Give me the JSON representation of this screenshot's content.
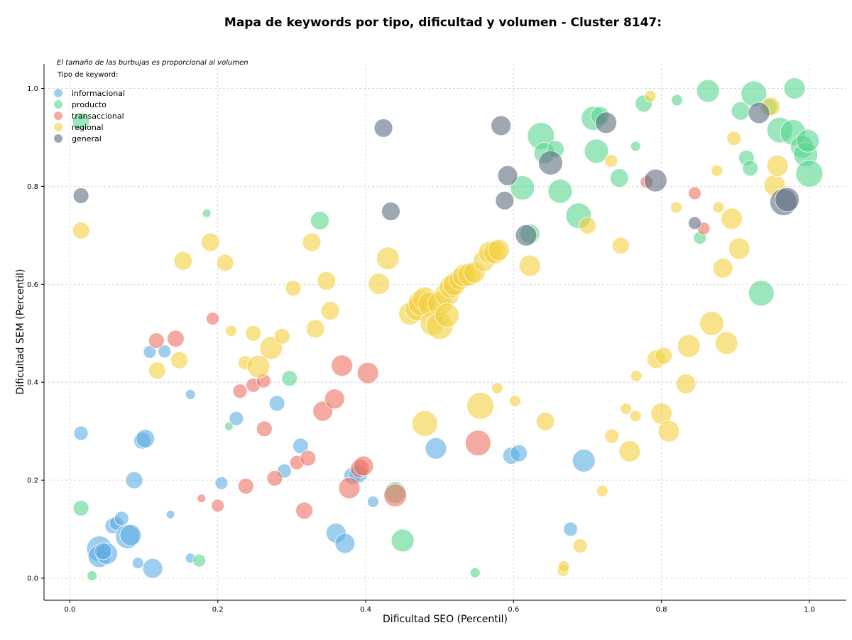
{
  "chart_data": {
    "type": "scatter",
    "title": "Mapa de keywords por tipo, dificultad y volumen - Cluster 8147:",
    "xlabel": "Dificultad SEO (Percentil)",
    "ylabel": "Dificultad SEM (Percentil)",
    "xlim": [
      -0.035,
      1.05
    ],
    "ylim": [
      -0.045,
      1.05
    ],
    "xticks": [
      "0.0",
      "0.2",
      "0.4",
      "0.6",
      "0.8",
      "1.0"
    ],
    "yticks": [
      "0.0",
      "0.2",
      "0.4",
      "0.6",
      "0.8",
      "1.0"
    ],
    "grid": true,
    "legend_title": "Tipo de keyword:",
    "legend_position": "top-left",
    "note": "El tamaño de las burbujas es proporcional al volumen",
    "series": [
      {
        "name": "informacional",
        "color": "#5dade2",
        "points": [
          [
            0.015,
            0.296,
            10
          ],
          [
            0.04,
            0.06,
            18
          ],
          [
            0.04,
            0.045,
            16
          ],
          [
            0.05,
            0.05,
            15
          ],
          [
            0.045,
            0.055,
            12
          ],
          [
            0.058,
            0.107,
            11
          ],
          [
            0.063,
            0.112,
            10
          ],
          [
            0.07,
            0.122,
            10
          ],
          [
            0.078,
            0.085,
            17
          ],
          [
            0.082,
            0.088,
            15
          ],
          [
            0.087,
            0.2,
            12
          ],
          [
            0.092,
            0.031,
            8
          ],
          [
            0.098,
            0.281,
            12
          ],
          [
            0.102,
            0.285,
            13
          ],
          [
            0.108,
            0.462,
            9
          ],
          [
            0.112,
            0.02,
            14
          ],
          [
            0.128,
            0.463,
            9
          ],
          [
            0.136,
            0.13,
            6
          ],
          [
            0.163,
            0.375,
            7
          ],
          [
            0.163,
            0.041,
            7
          ],
          [
            0.205,
            0.194,
            9
          ],
          [
            0.225,
            0.326,
            10
          ],
          [
            0.28,
            0.357,
            11
          ],
          [
            0.29,
            0.219,
            10
          ],
          [
            0.312,
            0.27,
            11
          ],
          [
            0.36,
            0.092,
            14
          ],
          [
            0.372,
            0.071,
            14
          ],
          [
            0.382,
            0.209,
            12
          ],
          [
            0.39,
            0.213,
            13
          ],
          [
            0.41,
            0.156,
            8
          ],
          [
            0.495,
            0.265,
            15
          ],
          [
            0.597,
            0.25,
            12
          ],
          [
            0.607,
            0.255,
            12
          ],
          [
            0.677,
            0.1,
            10
          ],
          [
            0.695,
            0.24,
            16
          ]
        ]
      },
      {
        "name": "producto",
        "color": "#58d68d",
        "points": [
          [
            0.015,
            0.933,
            12
          ],
          [
            0.015,
            0.143,
            11
          ],
          [
            0.03,
            0.005,
            7
          ],
          [
            0.175,
            0.036,
            9
          ],
          [
            0.185,
            0.745,
            6
          ],
          [
            0.215,
            0.31,
            6
          ],
          [
            0.297,
            0.408,
            11
          ],
          [
            0.338,
            0.73,
            13
          ],
          [
            0.44,
            0.175,
            15
          ],
          [
            0.45,
            0.077,
            16
          ],
          [
            0.548,
            0.011,
            7
          ],
          [
            0.612,
            0.797,
            17
          ],
          [
            0.622,
            0.703,
            14
          ],
          [
            0.637,
            0.903,
            19
          ],
          [
            0.642,
            0.868,
            15
          ],
          [
            0.657,
            0.876,
            12
          ],
          [
            0.663,
            0.79,
            17
          ],
          [
            0.688,
            0.74,
            18
          ],
          [
            0.708,
            0.939,
            17
          ],
          [
            0.712,
            0.872,
            17
          ],
          [
            0.717,
            0.944,
            13
          ],
          [
            0.743,
            0.817,
            13
          ],
          [
            0.765,
            0.882,
            7
          ],
          [
            0.776,
            0.969,
            12
          ],
          [
            0.821,
            0.976,
            8
          ],
          [
            0.852,
            0.695,
            9
          ],
          [
            0.863,
            0.995,
            16
          ],
          [
            0.907,
            0.954,
            13
          ],
          [
            0.915,
            0.858,
            11
          ],
          [
            0.92,
            0.837,
            11
          ],
          [
            0.925,
            0.989,
            18
          ],
          [
            0.935,
            0.582,
            18
          ],
          [
            0.945,
            0.962,
            12
          ],
          [
            0.96,
            0.915,
            18
          ],
          [
            0.978,
            0.91,
            18
          ],
          [
            0.98,
            1.0,
            15
          ],
          [
            0.99,
            0.881,
            16
          ],
          [
            0.995,
            0.865,
            17
          ],
          [
            0.998,
            0.893,
            16
          ],
          [
            1.0,
            0.826,
            19
          ]
        ]
      },
      {
        "name": "transaccional",
        "color": "#ec7063",
        "points": [
          [
            0.117,
            0.485,
            11
          ],
          [
            0.143,
            0.489,
            12
          ],
          [
            0.178,
            0.163,
            6
          ],
          [
            0.193,
            0.53,
            9
          ],
          [
            0.2,
            0.148,
            9
          ],
          [
            0.23,
            0.382,
            10
          ],
          [
            0.238,
            0.188,
            11
          ],
          [
            0.248,
            0.394,
            10
          ],
          [
            0.262,
            0.403,
            10
          ],
          [
            0.263,
            0.305,
            11
          ],
          [
            0.277,
            0.204,
            11
          ],
          [
            0.307,
            0.236,
            10
          ],
          [
            0.317,
            0.138,
            12
          ],
          [
            0.322,
            0.245,
            11
          ],
          [
            0.342,
            0.341,
            14
          ],
          [
            0.358,
            0.366,
            14
          ],
          [
            0.368,
            0.434,
            15
          ],
          [
            0.378,
            0.184,
            15
          ],
          [
            0.392,
            0.224,
            13
          ],
          [
            0.397,
            0.229,
            14
          ],
          [
            0.403,
            0.419,
            15
          ],
          [
            0.44,
            0.169,
            16
          ],
          [
            0.552,
            0.276,
            18
          ],
          [
            0.78,
            0.809,
            9
          ],
          [
            0.845,
            0.786,
            9
          ],
          [
            0.857,
            0.714,
            9
          ]
        ]
      },
      {
        "name": "regional",
        "color": "#f4d03f",
        "points": [
          [
            0.015,
            0.71,
            12
          ],
          [
            0.153,
            0.648,
            13
          ],
          [
            0.118,
            0.424,
            12
          ],
          [
            0.148,
            0.445,
            12
          ],
          [
            0.19,
            0.686,
            13
          ],
          [
            0.21,
            0.644,
            12
          ],
          [
            0.218,
            0.505,
            8
          ],
          [
            0.237,
            0.44,
            10
          ],
          [
            0.248,
            0.5,
            11
          ],
          [
            0.255,
            0.432,
            16
          ],
          [
            0.272,
            0.47,
            16
          ],
          [
            0.287,
            0.494,
            11
          ],
          [
            0.302,
            0.592,
            11
          ],
          [
            0.327,
            0.686,
            13
          ],
          [
            0.332,
            0.509,
            13
          ],
          [
            0.347,
            0.607,
            13
          ],
          [
            0.352,
            0.546,
            13
          ],
          [
            0.418,
            0.601,
            15
          ],
          [
            0.43,
            0.653,
            16
          ],
          [
            0.46,
            0.54,
            16
          ],
          [
            0.47,
            0.55,
            17
          ],
          [
            0.475,
            0.562,
            18
          ],
          [
            0.48,
            0.57,
            17
          ],
          [
            0.48,
            0.316,
            18
          ],
          [
            0.487,
            0.56,
            17
          ],
          [
            0.49,
            0.52,
            17
          ],
          [
            0.5,
            0.515,
            19
          ],
          [
            0.5,
            0.56,
            17
          ],
          [
            0.51,
            0.58,
            17
          ],
          [
            0.515,
            0.595,
            16
          ],
          [
            0.52,
            0.6,
            16
          ],
          [
            0.51,
            0.537,
            17
          ],
          [
            0.527,
            0.61,
            15
          ],
          [
            0.533,
            0.618,
            16
          ],
          [
            0.54,
            0.62,
            16
          ],
          [
            0.547,
            0.624,
            15
          ],
          [
            0.56,
            0.648,
            15
          ],
          [
            0.568,
            0.665,
            16
          ],
          [
            0.575,
            0.665,
            16
          ],
          [
            0.58,
            0.67,
            15
          ],
          [
            0.555,
            0.352,
            19
          ],
          [
            0.578,
            0.388,
            8
          ],
          [
            0.602,
            0.362,
            8
          ],
          [
            0.622,
            0.638,
            15
          ],
          [
            0.643,
            0.32,
            13
          ],
          [
            0.667,
            0.015,
            8
          ],
          [
            0.668,
            0.024,
            8
          ],
          [
            0.69,
            0.066,
            10
          ],
          [
            0.7,
            0.72,
            12
          ],
          [
            0.72,
            0.178,
            8
          ],
          [
            0.732,
            0.852,
            9
          ],
          [
            0.733,
            0.29,
            10
          ],
          [
            0.745,
            0.679,
            12
          ],
          [
            0.752,
            0.346,
            8
          ],
          [
            0.757,
            0.259,
            15
          ],
          [
            0.765,
            0.331,
            8
          ],
          [
            0.766,
            0.413,
            8
          ],
          [
            0.785,
            0.984,
            8
          ],
          [
            0.793,
            0.447,
            13
          ],
          [
            0.8,
            0.336,
            15
          ],
          [
            0.803,
            0.454,
            12
          ],
          [
            0.81,
            0.3,
            15
          ],
          [
            0.82,
            0.757,
            8
          ],
          [
            0.837,
            0.474,
            16
          ],
          [
            0.833,
            0.397,
            14
          ],
          [
            0.868,
            0.52,
            17
          ],
          [
            0.875,
            0.832,
            8
          ],
          [
            0.877,
            0.757,
            8
          ],
          [
            0.883,
            0.633,
            14
          ],
          [
            0.888,
            0.48,
            16
          ],
          [
            0.895,
            0.734,
            15
          ],
          [
            0.898,
            0.898,
            10
          ],
          [
            0.905,
            0.673,
            15
          ],
          [
            0.948,
            0.963,
            13
          ],
          [
            0.953,
            0.802,
            15
          ],
          [
            0.957,
            0.842,
            15
          ]
        ]
      },
      {
        "name": "general",
        "color": "#5d6d7e",
        "points": [
          [
            0.015,
            0.781,
            11
          ],
          [
            0.424,
            0.919,
            13
          ],
          [
            0.434,
            0.749,
            13
          ],
          [
            0.583,
            0.924,
            14
          ],
          [
            0.588,
            0.771,
            13
          ],
          [
            0.592,
            0.822,
            14
          ],
          [
            0.617,
            0.7,
            15
          ],
          [
            0.65,
            0.848,
            17
          ],
          [
            0.725,
            0.93,
            15
          ],
          [
            0.792,
            0.812,
            16
          ],
          [
            0.845,
            0.725,
            9
          ],
          [
            0.932,
            0.95,
            15
          ],
          [
            0.965,
            0.768,
            19
          ],
          [
            0.97,
            0.773,
            17
          ]
        ]
      }
    ]
  }
}
